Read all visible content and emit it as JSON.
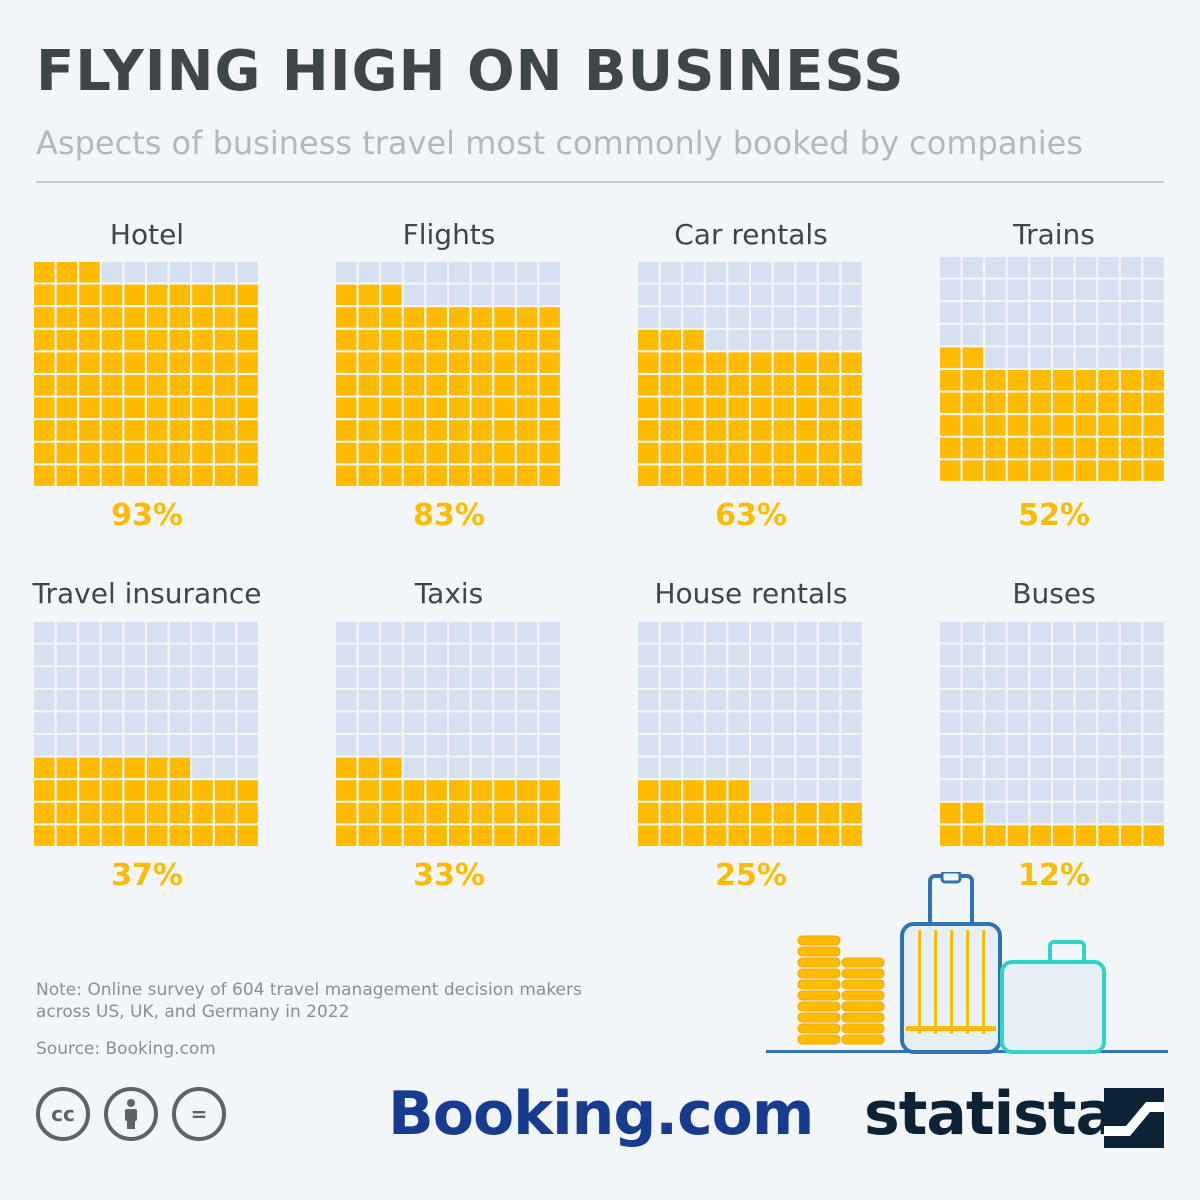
{
  "header": {
    "title": "FLYING HIGH ON BUSINESS",
    "subtitle": "Aspects of business travel most commonly booked by companies"
  },
  "chart_data": {
    "type": "waffle",
    "grid": "10x10",
    "unit": "%",
    "categories": [
      "Hotel",
      "Flights",
      "Car rentals",
      "Trains",
      "Travel insurance",
      "Taxis",
      "House rentals",
      "Buses"
    ],
    "values": [
      93,
      83,
      63,
      52,
      37,
      33,
      25,
      12
    ],
    "value_labels": [
      "93%",
      "83%",
      "63%",
      "52%",
      "37%",
      "33%",
      "25%",
      "12%"
    ],
    "colors": {
      "filled": "#ffbb00",
      "empty": "#d6e0f0",
      "value_label": "#ffbb00",
      "label": "#3f4648"
    }
  },
  "footer": {
    "note": "Note: Online survey of 604 travel management decision makers across US, UK, and Germany in 2022",
    "source": "Source: Booking.com",
    "license_icons": [
      "cc-icon",
      "attribution-icon",
      "no-derivatives-icon"
    ],
    "cc_text": "cc",
    "nd_text": "="
  },
  "logos": {
    "booking": "Booking.com",
    "statista": "statista"
  }
}
